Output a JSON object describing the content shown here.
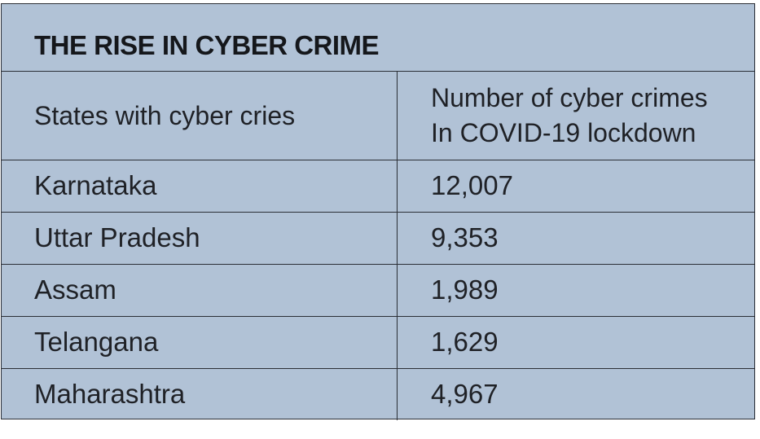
{
  "table": {
    "title": "THE RISE IN CYBER CRIME",
    "columns": {
      "col1": "States with cyber cries",
      "col2_line1": "Number of cyber crimes",
      "col2_line2": "In COVID-19 lockdown"
    },
    "rows": [
      {
        "state": "Karnataka",
        "count": "12,007"
      },
      {
        "state": "Uttar Pradesh",
        "count": "9,353"
      },
      {
        "state": "Assam",
        "count": "1,989"
      },
      {
        "state": "Telangana",
        "count": "1,629"
      },
      {
        "state": "Maharashtra",
        "count": "4,967"
      }
    ]
  },
  "colors": {
    "background": "#b1c2d6",
    "border": "#2b2f36",
    "text": "#1f2126"
  }
}
